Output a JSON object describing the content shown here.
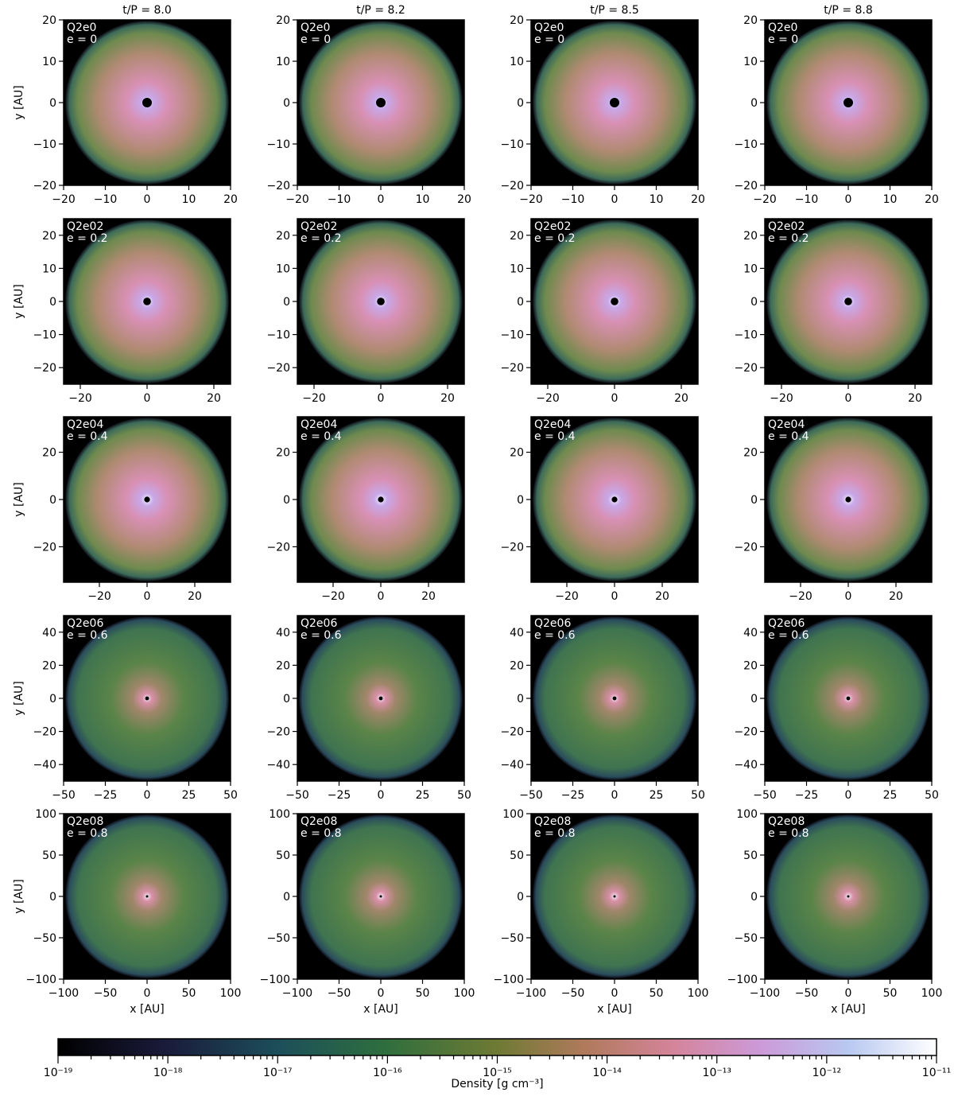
{
  "chart_data": [
    {
      "type": "image",
      "title": "t/P = 8.0",
      "annotations": [
        "Q2e0",
        "e = 0"
      ],
      "ylabel": "y [AU]",
      "xlim": [
        -20,
        20
      ],
      "ylim": [
        -20,
        20
      ],
      "xticks": [
        {
          "value": -20,
          "label": "−20"
        },
        {
          "value": -10,
          "label": "−10"
        },
        0,
        10,
        20
      ],
      "yticks": [
        {
          "value": -20,
          "label": "−20"
        },
        {
          "value": -10,
          "label": "−10"
        },
        0,
        10,
        20
      ]
    },
    {
      "type": "image",
      "title": "t/P = 8.2",
      "annotations": [
        "Q2e0",
        "e = 0"
      ],
      "xlim": [
        -20,
        20
      ],
      "ylim": [
        -20,
        20
      ],
      "xticks": [
        {
          "value": -20,
          "label": "−20"
        },
        {
          "value": -10,
          "label": "−10"
        },
        0,
        10,
        20
      ],
      "yticks": [
        {
          "value": -20,
          "label": "−20"
        },
        {
          "value": -10,
          "label": "−10"
        },
        0,
        10,
        20
      ]
    },
    {
      "type": "image",
      "title": "t/P = 8.5",
      "annotations": [
        "Q2e0",
        "e = 0"
      ],
      "xlim": [
        -20,
        20
      ],
      "ylim": [
        -20,
        20
      ],
      "xticks": [
        {
          "value": -20,
          "label": "−20"
        },
        {
          "value": -10,
          "label": "−10"
        },
        0,
        10,
        20
      ],
      "yticks": [
        {
          "value": -20,
          "label": "−20"
        },
        {
          "value": -10,
          "label": "−10"
        },
        0,
        10,
        20
      ]
    },
    {
      "type": "image",
      "title": "t/P = 8.8",
      "annotations": [
        "Q2e0",
        "e = 0"
      ],
      "xlim": [
        -20,
        20
      ],
      "ylim": [
        -20,
        20
      ],
      "xticks": [
        {
          "value": -20,
          "label": "−20"
        },
        {
          "value": -10,
          "label": "−10"
        },
        0,
        10,
        20
      ],
      "yticks": [
        {
          "value": -20,
          "label": "−20"
        },
        {
          "value": -10,
          "label": "−10"
        },
        0,
        10,
        20
      ]
    },
    {
      "type": "image",
      "annotations": [
        "Q2e02",
        "e = 0.2"
      ],
      "ylabel": "y [AU]",
      "xlim": [
        -25,
        25
      ],
      "ylim": [
        -25,
        25
      ],
      "xticks": [
        {
          "value": -20,
          "label": "−20"
        },
        0,
        20
      ],
      "yticks": [
        {
          "value": -20,
          "label": "−20"
        },
        {
          "value": -10,
          "label": "−10"
        },
        0,
        10,
        20
      ]
    },
    {
      "type": "image",
      "annotations": [
        "Q2e02",
        "e = 0.2"
      ],
      "xlim": [
        -25,
        25
      ],
      "ylim": [
        -25,
        25
      ],
      "xticks": [
        {
          "value": -20,
          "label": "−20"
        },
        0,
        20
      ],
      "yticks": [
        {
          "value": -20,
          "label": "−20"
        },
        {
          "value": -10,
          "label": "−10"
        },
        0,
        10,
        20
      ]
    },
    {
      "type": "image",
      "annotations": [
        "Q2e02",
        "e = 0.2"
      ],
      "xlim": [
        -25,
        25
      ],
      "ylim": [
        -25,
        25
      ],
      "xticks": [
        {
          "value": -20,
          "label": "−20"
        },
        0,
        20
      ],
      "yticks": [
        {
          "value": -20,
          "label": "−20"
        },
        {
          "value": -10,
          "label": "−10"
        },
        0,
        10,
        20
      ]
    },
    {
      "type": "image",
      "annotations": [
        "Q2e02",
        "e = 0.2"
      ],
      "xlim": [
        -25,
        25
      ],
      "ylim": [
        -25,
        25
      ],
      "xticks": [
        {
          "value": -20,
          "label": "−20"
        },
        0,
        20
      ],
      "yticks": [
        {
          "value": -20,
          "label": "−20"
        },
        {
          "value": -10,
          "label": "−10"
        },
        0,
        10,
        20
      ]
    },
    {
      "type": "image",
      "annotations": [
        "Q2e04",
        "e = 0.4"
      ],
      "ylabel": "y [AU]",
      "xlim": [
        -35,
        35
      ],
      "ylim": [
        -35,
        35
      ],
      "xticks": [
        {
          "value": -20,
          "label": "−20"
        },
        0,
        20
      ],
      "yticks": [
        {
          "value": -20,
          "label": "−20"
        },
        0,
        20
      ]
    },
    {
      "type": "image",
      "annotations": [
        "Q2e04",
        "e = 0.4"
      ],
      "xlim": [
        -35,
        35
      ],
      "ylim": [
        -35,
        35
      ],
      "xticks": [
        {
          "value": -20,
          "label": "−20"
        },
        0,
        20
      ],
      "yticks": [
        {
          "value": -20,
          "label": "−20"
        },
        0,
        20
      ]
    },
    {
      "type": "image",
      "annotations": [
        "Q2e04",
        "e = 0.4"
      ],
      "xlim": [
        -35,
        35
      ],
      "ylim": [
        -35,
        35
      ],
      "xticks": [
        {
          "value": -20,
          "label": "−20"
        },
        0,
        20
      ],
      "yticks": [
        {
          "value": -20,
          "label": "−20"
        },
        0,
        20
      ]
    },
    {
      "type": "image",
      "annotations": [
        "Q2e04",
        "e = 0.4"
      ],
      "xlim": [
        -35,
        35
      ],
      "ylim": [
        -35,
        35
      ],
      "xticks": [
        {
          "value": -20,
          "label": "−20"
        },
        0,
        20
      ],
      "yticks": [
        {
          "value": -20,
          "label": "−20"
        },
        0,
        20
      ]
    },
    {
      "type": "image",
      "annotations": [
        "Q2e06",
        "e = 0.6"
      ],
      "ylabel": "y [AU]",
      "xlim": [
        -50,
        50
      ],
      "ylim": [
        -50,
        50
      ],
      "xticks": [
        {
          "value": -50,
          "label": "−50"
        },
        {
          "value": -25,
          "label": "−25"
        },
        0,
        25,
        50
      ],
      "yticks": [
        {
          "value": -40,
          "label": "−40"
        },
        {
          "value": -20,
          "label": "−20"
        },
        0,
        20,
        40
      ]
    },
    {
      "type": "image",
      "annotations": [
        "Q2e06",
        "e = 0.6"
      ],
      "xlim": [
        -50,
        50
      ],
      "ylim": [
        -50,
        50
      ],
      "xticks": [
        {
          "value": -50,
          "label": "−50"
        },
        {
          "value": -25,
          "label": "−25"
        },
        0,
        25,
        50
      ],
      "yticks": [
        {
          "value": -40,
          "label": "−40"
        },
        {
          "value": -20,
          "label": "−20"
        },
        0,
        20,
        40
      ]
    },
    {
      "type": "image",
      "annotations": [
        "Q2e06",
        "e = 0.6"
      ],
      "xlim": [
        -50,
        50
      ],
      "ylim": [
        -50,
        50
      ],
      "xticks": [
        {
          "value": -50,
          "label": "−50"
        },
        {
          "value": -25,
          "label": "−25"
        },
        0,
        25,
        50
      ],
      "yticks": [
        {
          "value": -40,
          "label": "−40"
        },
        {
          "value": -20,
          "label": "−20"
        },
        0,
        20,
        40
      ]
    },
    {
      "type": "image",
      "annotations": [
        "Q2e06",
        "e = 0.6"
      ],
      "xlim": [
        -50,
        50
      ],
      "ylim": [
        -50,
        50
      ],
      "xticks": [
        {
          "value": -50,
          "label": "−50"
        },
        {
          "value": -25,
          "label": "−25"
        },
        0,
        25,
        50
      ],
      "yticks": [
        {
          "value": -40,
          "label": "−40"
        },
        {
          "value": -20,
          "label": "−20"
        },
        0,
        20,
        40
      ]
    },
    {
      "type": "image",
      "annotations": [
        "Q2e08",
        "e = 0.8"
      ],
      "ylabel": "y [AU]",
      "xlabel": "x [AU]",
      "xlim": [
        -100,
        100
      ],
      "ylim": [
        -100,
        100
      ],
      "xticks": [
        {
          "value": -100,
          "label": "−100"
        },
        {
          "value": -50,
          "label": "−50"
        },
        0,
        50,
        100
      ],
      "yticks": [
        {
          "value": -100,
          "label": "−100"
        },
        {
          "value": -50,
          "label": "−50"
        },
        0,
        50,
        100
      ]
    },
    {
      "type": "image",
      "annotations": [
        "Q2e08",
        "e = 0.8"
      ],
      "xlabel": "x [AU]",
      "xlim": [
        -100,
        100
      ],
      "ylim": [
        -100,
        100
      ],
      "xticks": [
        {
          "value": -100,
          "label": "−100"
        },
        {
          "value": -50,
          "label": "−50"
        },
        0,
        50,
        100
      ],
      "yticks": [
        {
          "value": -100,
          "label": "−100"
        },
        {
          "value": -50,
          "label": "−50"
        },
        0,
        50,
        100
      ]
    },
    {
      "type": "image",
      "annotations": [
        "Q2e08",
        "e = 0.8"
      ],
      "xlabel": "x [AU]",
      "xlim": [
        -100,
        100
      ],
      "ylim": [
        -100,
        100
      ],
      "xticks": [
        {
          "value": -100,
          "label": "−100"
        },
        {
          "value": -50,
          "label": "−50"
        },
        0,
        50,
        100
      ],
      "yticks": [
        {
          "value": -100,
          "label": "−100"
        },
        {
          "value": -50,
          "label": "−50"
        },
        0,
        50,
        100
      ]
    },
    {
      "type": "image",
      "annotations": [
        "Q2e08",
        "e = 0.8"
      ],
      "xlabel": "x [AU]",
      "xlim": [
        -100,
        100
      ],
      "ylim": [
        -100,
        100
      ],
      "xticks": [
        {
          "value": -100,
          "label": "−100"
        },
        {
          "value": -50,
          "label": "−50"
        },
        0,
        50,
        100
      ],
      "yticks": [
        {
          "value": -100,
          "label": "−100"
        },
        {
          "value": -50,
          "label": "−50"
        },
        0,
        50,
        100
      ]
    },
    {
      "type": "colorbar",
      "label": "Density [g cm⁻³]",
      "log": true,
      "minor_ticks": true,
      "xlim": [
        1e-19,
        1e-11
      ],
      "xticks": [
        {
          "value": 1e-19,
          "label": "10⁻¹⁹"
        },
        {
          "value": 1e-18,
          "label": "10⁻¹⁸"
        },
        {
          "value": 1e-17,
          "label": "10⁻¹⁷"
        },
        {
          "value": 1e-16,
          "label": "10⁻¹⁶"
        },
        {
          "value": 1e-15,
          "label": "10⁻¹⁵"
        },
        {
          "value": 1e-14,
          "label": "10⁻¹⁴"
        },
        {
          "value": 1e-13,
          "label": "10⁻¹³"
        },
        {
          "value": 1e-12,
          "label": "10⁻¹²"
        },
        {
          "value": 1e-11,
          "label": "10⁻¹¹"
        }
      ]
    }
  ]
}
